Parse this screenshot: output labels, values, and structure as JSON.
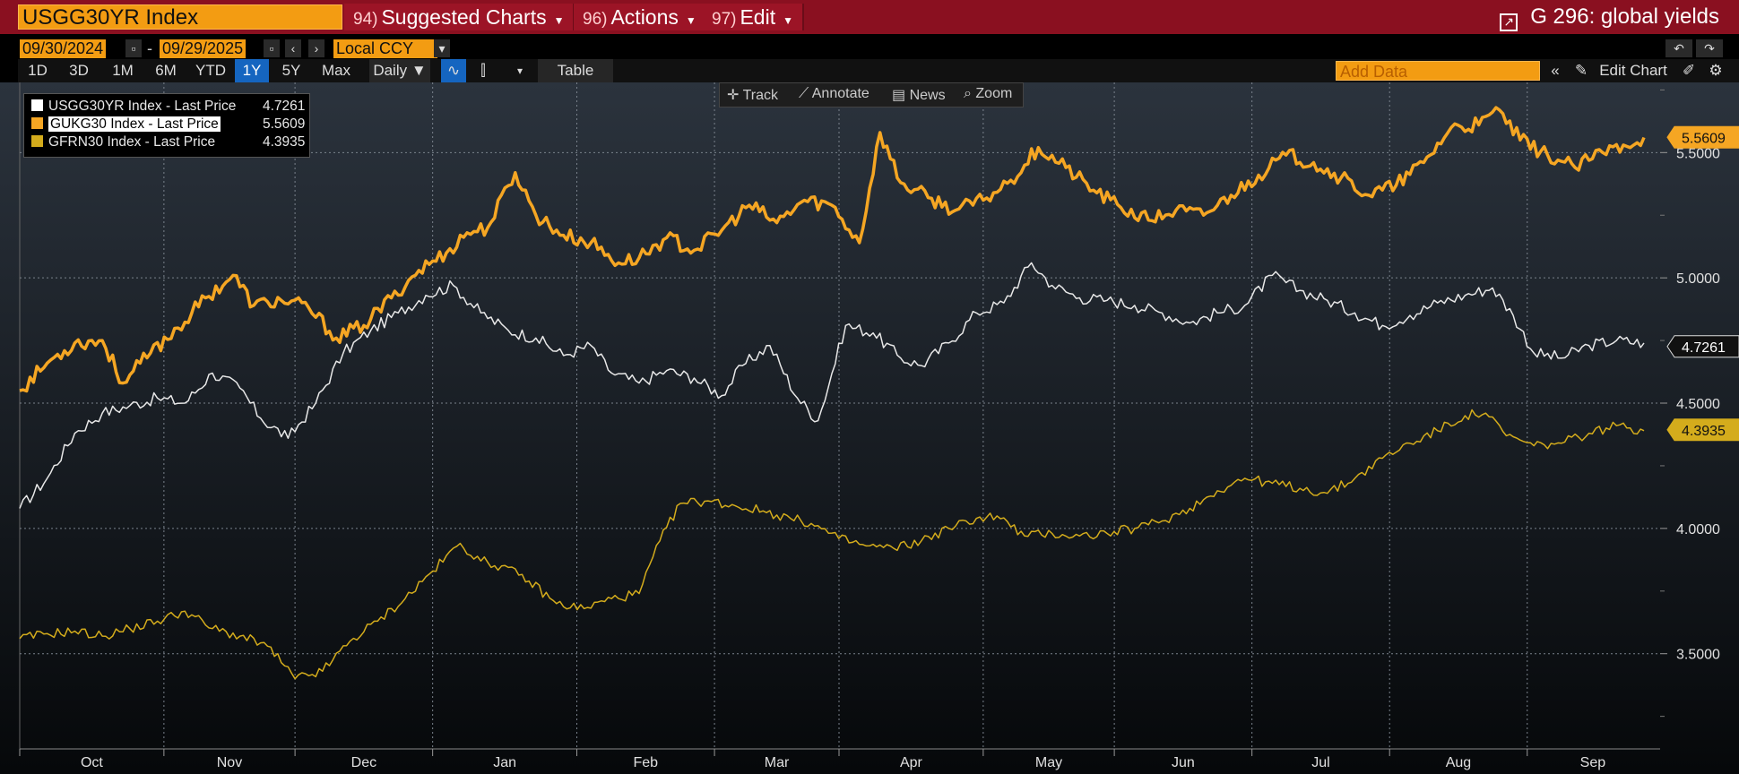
{
  "header": {
    "ticker": "USGG30YR Index",
    "menus": [
      {
        "num": "94)",
        "label": "Suggested Charts"
      },
      {
        "num": "96)",
        "label": "Actions"
      },
      {
        "num": "97)",
        "label": "Edit"
      }
    ],
    "chart_title": "G 296: global yields"
  },
  "controls": {
    "start_date": "09/30/2024",
    "end_date": "09/29/2025",
    "currency": "Local CCY",
    "ranges": [
      "1D",
      "3D",
      "1M",
      "6M",
      "YTD",
      "1Y",
      "5Y",
      "Max"
    ],
    "active_range": "1Y",
    "frequency": "Daily ▼",
    "table_label": "Table",
    "add_data_placeholder": "Add Data",
    "edit_chart_label": "Edit Chart"
  },
  "toolbar": [
    "Track",
    "Annotate",
    "News",
    "Zoom"
  ],
  "colors": {
    "us": "#e8e8e8",
    "uk": "#f5a623",
    "fr": "#d4ac1c",
    "topbar": "#8a1020",
    "accent": "#f39c12"
  },
  "chart_data": {
    "type": "line",
    "x_labels": [
      "Oct",
      "Nov",
      "Dec",
      "Jan",
      "Feb",
      "Mar",
      "Apr",
      "May",
      "Jun",
      "Jul",
      "Aug",
      "Sep"
    ],
    "y_ticks": [
      "3.5000",
      "4.0000",
      "4.5000",
      "5.0000",
      "5.5000"
    ],
    "ylim": [
      3.12,
      5.78
    ],
    "grid": true,
    "legend_position": "top-left",
    "series": [
      {
        "name": "USGG30YR Index - Last Price",
        "last": "4.7261",
        "color": "#e8e8e8",
        "anchors": [
          [
            0,
            4.08
          ],
          [
            8,
            4.2
          ],
          [
            16,
            4.38
          ],
          [
            24,
            4.46
          ],
          [
            32,
            4.49
          ],
          [
            40,
            4.52
          ],
          [
            48,
            4.5
          ],
          [
            56,
            4.62
          ],
          [
            64,
            4.56
          ],
          [
            70,
            4.44
          ],
          [
            78,
            4.36
          ],
          [
            86,
            4.5
          ],
          [
            94,
            4.7
          ],
          [
            102,
            4.79
          ],
          [
            110,
            4.86
          ],
          [
            118,
            4.93
          ],
          [
            126,
            4.97
          ],
          [
            134,
            4.86
          ],
          [
            142,
            4.79
          ],
          [
            150,
            4.76
          ],
          [
            158,
            4.69
          ],
          [
            166,
            4.73
          ],
          [
            172,
            4.62
          ],
          [
            180,
            4.58
          ],
          [
            188,
            4.63
          ],
          [
            196,
            4.6
          ],
          [
            204,
            4.53
          ],
          [
            210,
            4.65
          ],
          [
            218,
            4.73
          ],
          [
            226,
            4.52
          ],
          [
            232,
            4.43
          ],
          [
            240,
            4.81
          ],
          [
            248,
            4.78
          ],
          [
            256,
            4.68
          ],
          [
            262,
            4.65
          ],
          [
            270,
            4.74
          ],
          [
            278,
            4.86
          ],
          [
            286,
            4.9
          ],
          [
            294,
            5.06
          ],
          [
            300,
            4.97
          ],
          [
            308,
            4.92
          ],
          [
            316,
            4.91
          ],
          [
            324,
            4.89
          ],
          [
            332,
            4.86
          ],
          [
            340,
            4.82
          ],
          [
            348,
            4.86
          ],
          [
            356,
            4.89
          ],
          [
            364,
            5.01
          ],
          [
            372,
            4.95
          ],
          [
            380,
            4.91
          ],
          [
            388,
            4.86
          ],
          [
            396,
            4.81
          ],
          [
            404,
            4.85
          ],
          [
            412,
            4.9
          ],
          [
            420,
            4.93
          ],
          [
            428,
            4.96
          ],
          [
            434,
            4.85
          ],
          [
            440,
            4.7
          ],
          [
            448,
            4.68
          ],
          [
            456,
            4.73
          ],
          [
            464,
            4.75
          ],
          [
            472,
            4.74
          ]
        ]
      },
      {
        "name": "GUKG30 Index - Last Price",
        "last": "5.5609",
        "color": "#f5a623",
        "anchors": [
          [
            0,
            4.55
          ],
          [
            8,
            4.66
          ],
          [
            16,
            4.74
          ],
          [
            24,
            4.75
          ],
          [
            30,
            4.58
          ],
          [
            38,
            4.7
          ],
          [
            46,
            4.8
          ],
          [
            54,
            4.92
          ],
          [
            62,
            5.01
          ],
          [
            68,
            4.89
          ],
          [
            76,
            4.91
          ],
          [
            84,
            4.88
          ],
          [
            92,
            4.76
          ],
          [
            100,
            4.81
          ],
          [
            108,
            4.92
          ],
          [
            116,
            5.03
          ],
          [
            124,
            5.1
          ],
          [
            130,
            5.18
          ],
          [
            136,
            5.2
          ],
          [
            144,
            5.42
          ],
          [
            150,
            5.25
          ],
          [
            158,
            5.17
          ],
          [
            166,
            5.14
          ],
          [
            174,
            5.06
          ],
          [
            180,
            5.08
          ],
          [
            188,
            5.16
          ],
          [
            196,
            5.11
          ],
          [
            204,
            5.19
          ],
          [
            212,
            5.29
          ],
          [
            220,
            5.22
          ],
          [
            228,
            5.31
          ],
          [
            236,
            5.29
          ],
          [
            244,
            5.14
          ],
          [
            250,
            5.58
          ],
          [
            256,
            5.38
          ],
          [
            264,
            5.32
          ],
          [
            272,
            5.27
          ],
          [
            280,
            5.31
          ],
          [
            288,
            5.39
          ],
          [
            296,
            5.52
          ],
          [
            304,
            5.44
          ],
          [
            312,
            5.35
          ],
          [
            320,
            5.28
          ],
          [
            328,
            5.23
          ],
          [
            336,
            5.27
          ],
          [
            344,
            5.25
          ],
          [
            352,
            5.33
          ],
          [
            360,
            5.41
          ],
          [
            368,
            5.49
          ],
          [
            376,
            5.46
          ],
          [
            384,
            5.4
          ],
          [
            392,
            5.33
          ],
          [
            400,
            5.37
          ],
          [
            408,
            5.46
          ],
          [
            416,
            5.6
          ],
          [
            424,
            5.61
          ],
          [
            430,
            5.67
          ],
          [
            436,
            5.55
          ],
          [
            444,
            5.49
          ],
          [
            452,
            5.44
          ],
          [
            460,
            5.5
          ],
          [
            466,
            5.53
          ],
          [
            472,
            5.56
          ]
        ]
      },
      {
        "name": "GFRN30 Index - Last Price",
        "last": "4.3935",
        "color": "#d4ac1c",
        "anchors": [
          [
            0,
            3.56
          ],
          [
            8,
            3.58
          ],
          [
            16,
            3.59
          ],
          [
            24,
            3.57
          ],
          [
            32,
            3.6
          ],
          [
            40,
            3.63
          ],
          [
            48,
            3.67
          ],
          [
            56,
            3.6
          ],
          [
            64,
            3.57
          ],
          [
            72,
            3.53
          ],
          [
            80,
            3.4
          ],
          [
            88,
            3.43
          ],
          [
            96,
            3.55
          ],
          [
            104,
            3.63
          ],
          [
            112,
            3.72
          ],
          [
            120,
            3.83
          ],
          [
            128,
            3.94
          ],
          [
            134,
            3.87
          ],
          [
            140,
            3.85
          ],
          [
            148,
            3.79
          ],
          [
            156,
            3.7
          ],
          [
            164,
            3.68
          ],
          [
            172,
            3.72
          ],
          [
            180,
            3.74
          ],
          [
            186,
            3.95
          ],
          [
            192,
            4.1
          ],
          [
            200,
            4.11
          ],
          [
            208,
            4.09
          ],
          [
            216,
            4.07
          ],
          [
            224,
            4.04
          ],
          [
            230,
            4.02
          ],
          [
            238,
            3.96
          ],
          [
            246,
            3.93
          ],
          [
            254,
            3.92
          ],
          [
            262,
            3.95
          ],
          [
            270,
            4.0
          ],
          [
            278,
            4.04
          ],
          [
            284,
            4.05
          ],
          [
            292,
            3.97
          ],
          [
            300,
            3.98
          ],
          [
            308,
            3.97
          ],
          [
            316,
            3.98
          ],
          [
            324,
            4.0
          ],
          [
            332,
            4.03
          ],
          [
            340,
            4.08
          ],
          [
            348,
            4.15
          ],
          [
            356,
            4.2
          ],
          [
            364,
            4.18
          ],
          [
            372,
            4.16
          ],
          [
            380,
            4.14
          ],
          [
            388,
            4.2
          ],
          [
            396,
            4.28
          ],
          [
            404,
            4.34
          ],
          [
            412,
            4.39
          ],
          [
            420,
            4.45
          ],
          [
            426,
            4.46
          ],
          [
            432,
            4.37
          ],
          [
            440,
            4.33
          ],
          [
            448,
            4.34
          ],
          [
            456,
            4.38
          ],
          [
            464,
            4.41
          ],
          [
            472,
            4.39
          ]
        ]
      }
    ]
  }
}
